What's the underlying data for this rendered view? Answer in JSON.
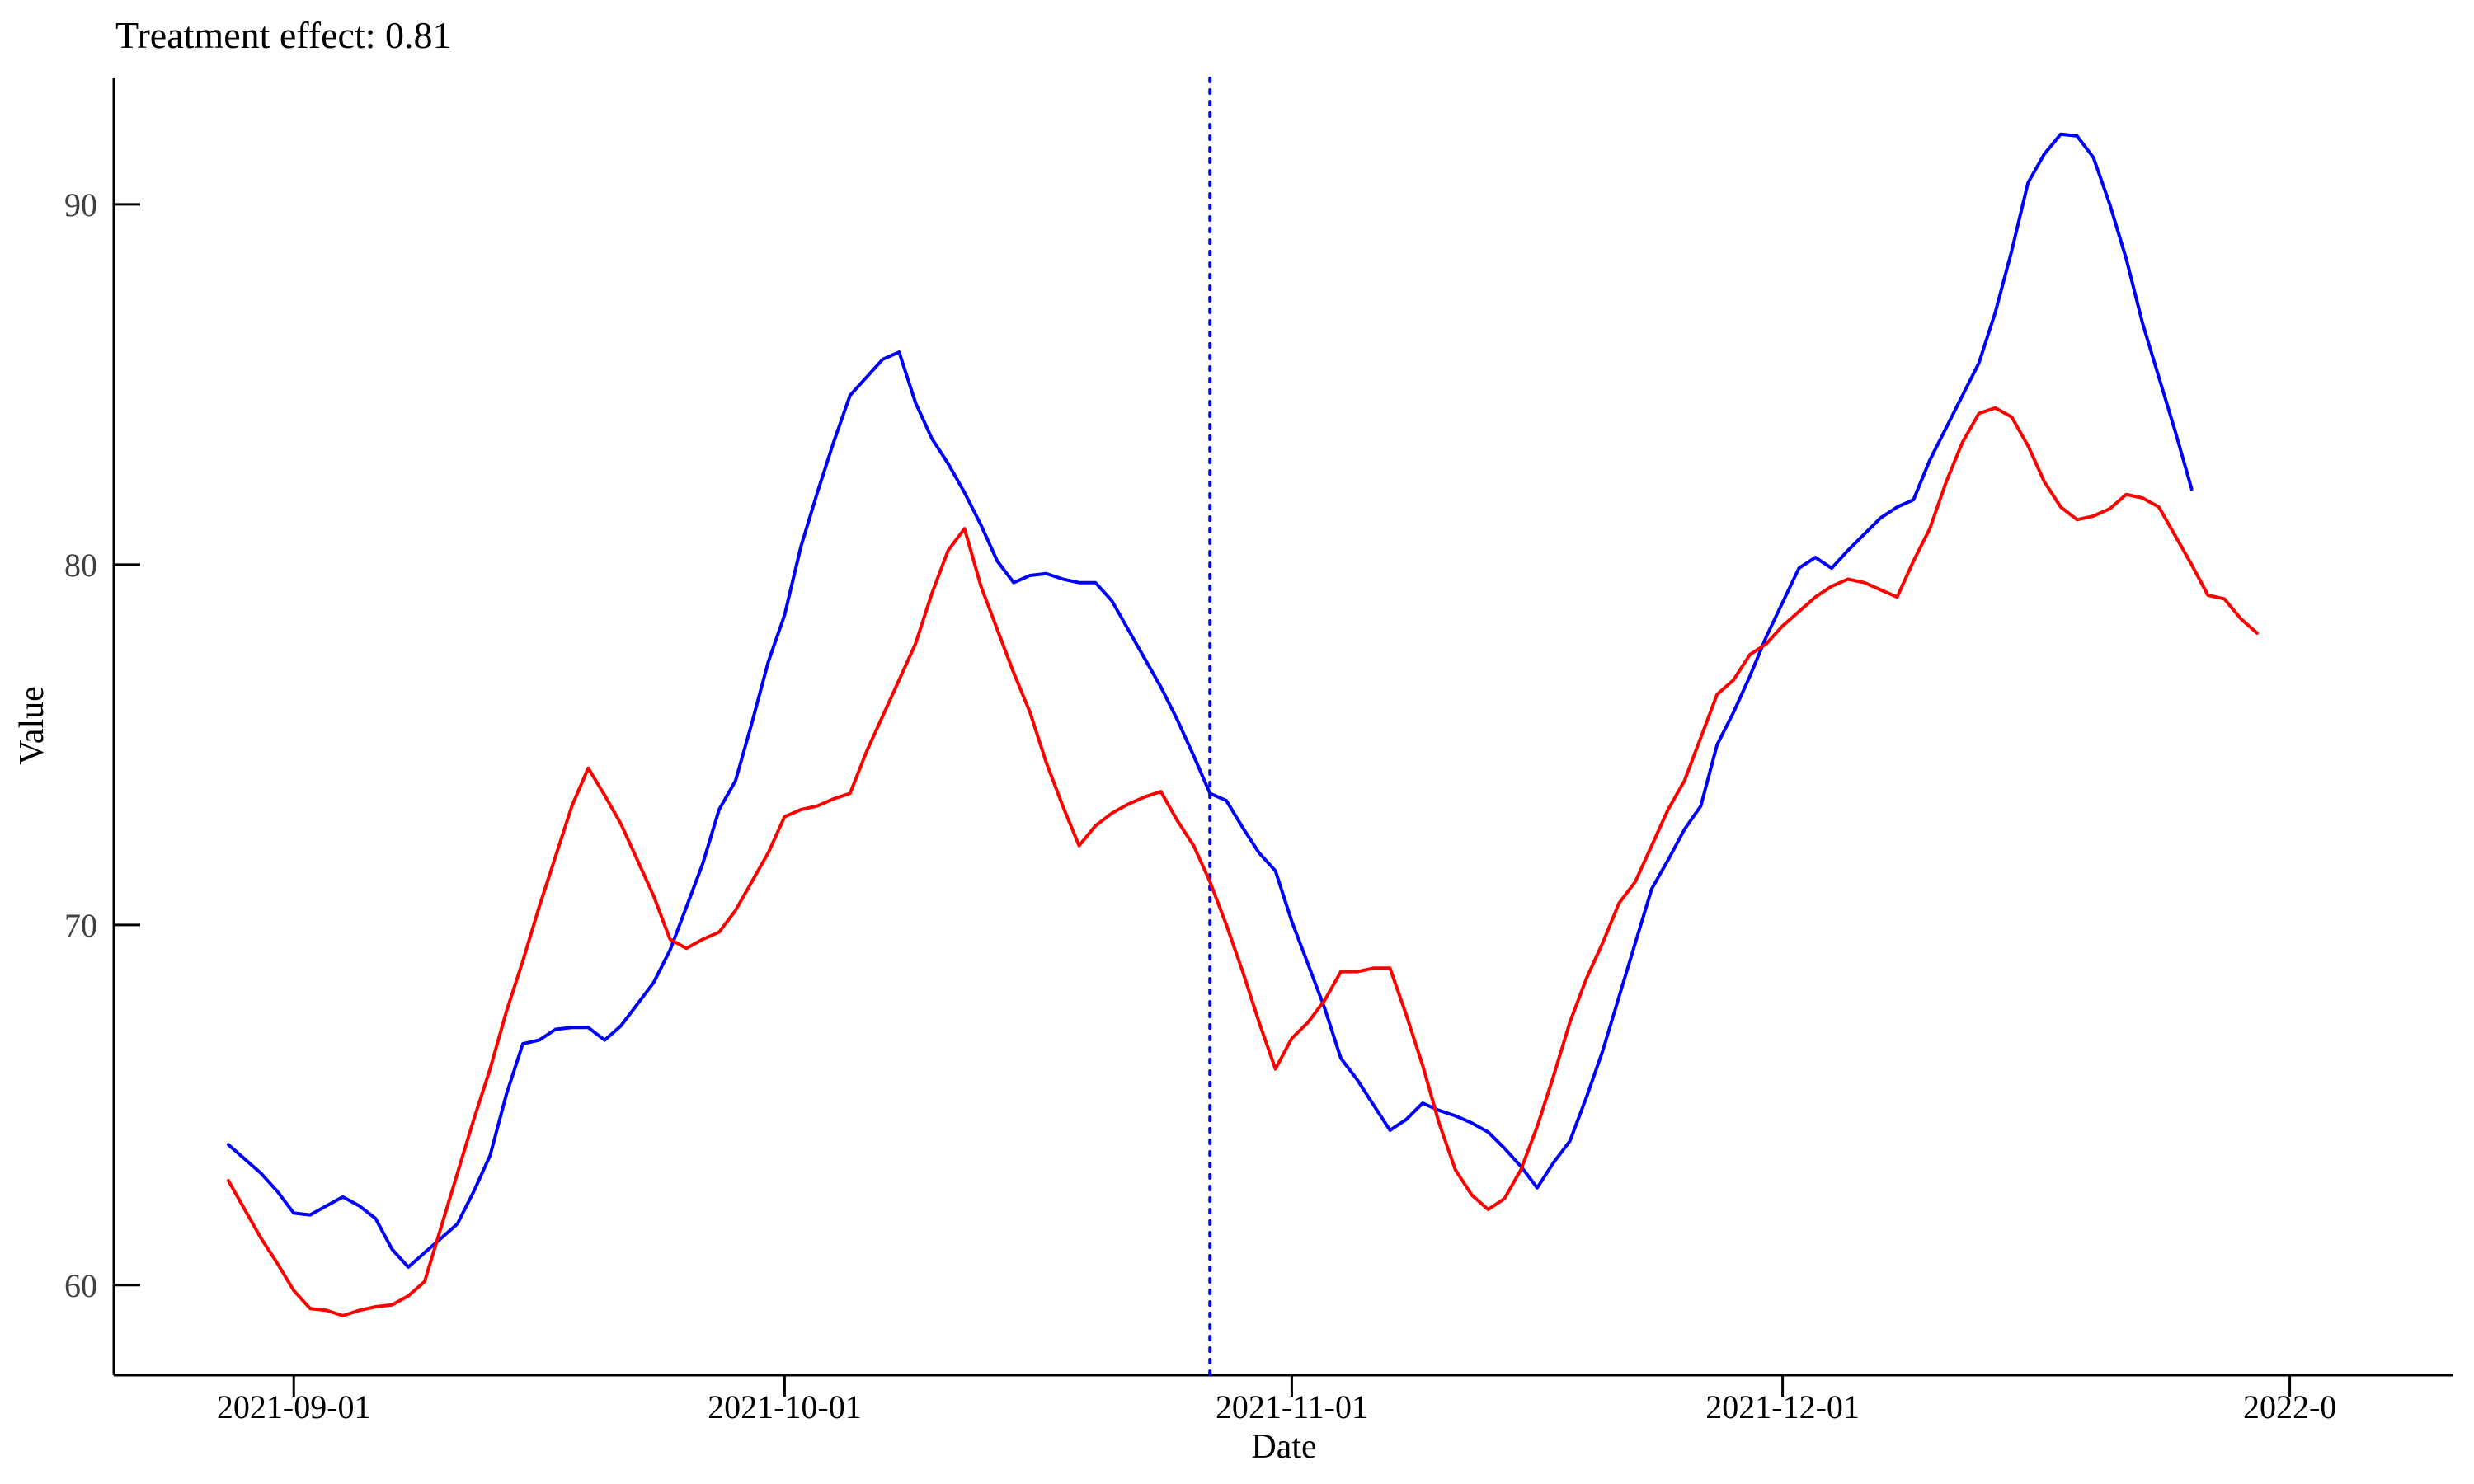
{
  "chart_data": {
    "type": "line",
    "title": "Treatment effect: 0.81",
    "xlabel": "Date",
    "ylabel": "Value",
    "xlim": [
      "2021-08-21",
      "2022-01-11"
    ],
    "ylim": [
      57.5,
      93.5
    ],
    "x_ticks": [
      "2021-09-01",
      "2021-10-01",
      "2021-11-01",
      "2021-12-01",
      "2022-01-01"
    ],
    "x_tick_labels": [
      "2021-09-01",
      "2021-10-01",
      "2021-11-01",
      "2021-12-01",
      "2022-0"
    ],
    "y_ticks": [
      60,
      70,
      80,
      90
    ],
    "y_tick_labels": [
      "60",
      "70",
      "80",
      "90"
    ],
    "grid": false,
    "legend": "none",
    "intervention_date": "2021-10-27",
    "intervention_color": "#0000ff",
    "series": [
      {
        "color": "#0000ff",
        "points": [
          [
            "2021-08-28",
            63.9
          ],
          [
            "2021-08-29",
            63.5
          ],
          [
            "2021-08-30",
            63.1
          ],
          [
            "2021-08-31",
            62.6
          ],
          [
            "2021-09-01",
            62.0
          ],
          [
            "2021-09-02",
            61.95
          ],
          [
            "2021-09-03",
            62.2
          ],
          [
            "2021-09-04",
            62.45
          ],
          [
            "2021-09-05",
            62.2
          ],
          [
            "2021-09-06",
            61.85
          ],
          [
            "2021-09-07",
            61.0
          ],
          [
            "2021-09-08",
            60.5
          ],
          [
            "2021-09-09",
            60.9
          ],
          [
            "2021-09-10",
            61.3
          ],
          [
            "2021-09-11",
            61.7
          ],
          [
            "2021-09-12",
            62.6
          ],
          [
            "2021-09-13",
            63.6
          ],
          [
            "2021-09-14",
            65.3
          ],
          [
            "2021-09-15",
            66.7
          ],
          [
            "2021-09-16",
            66.8
          ],
          [
            "2021-09-17",
            67.1
          ],
          [
            "2021-09-18",
            67.15
          ],
          [
            "2021-09-19",
            67.15
          ],
          [
            "2021-09-20",
            66.8
          ],
          [
            "2021-09-21",
            67.2
          ],
          [
            "2021-09-22",
            67.8
          ],
          [
            "2021-09-23",
            68.4
          ],
          [
            "2021-09-24",
            69.3
          ],
          [
            "2021-09-25",
            70.5
          ],
          [
            "2021-09-26",
            71.7
          ],
          [
            "2021-09-27",
            73.2
          ],
          [
            "2021-09-28",
            74.0
          ],
          [
            "2021-09-29",
            75.6
          ],
          [
            "2021-09-30",
            77.3
          ],
          [
            "2021-10-01",
            78.6
          ],
          [
            "2021-10-02",
            80.5
          ],
          [
            "2021-10-03",
            82.0
          ],
          [
            "2021-10-04",
            83.4
          ],
          [
            "2021-10-05",
            84.7
          ],
          [
            "2021-10-06",
            85.2
          ],
          [
            "2021-10-07",
            85.7
          ],
          [
            "2021-10-08",
            85.9
          ],
          [
            "2021-10-09",
            84.5
          ],
          [
            "2021-10-10",
            83.5
          ],
          [
            "2021-10-11",
            82.8
          ],
          [
            "2021-10-12",
            82.0
          ],
          [
            "2021-10-13",
            81.1
          ],
          [
            "2021-10-14",
            80.1
          ],
          [
            "2021-10-15",
            79.5
          ],
          [
            "2021-10-16",
            79.7
          ],
          [
            "2021-10-17",
            79.75
          ],
          [
            "2021-10-18",
            79.6
          ],
          [
            "2021-10-19",
            79.5
          ],
          [
            "2021-10-20",
            79.5
          ],
          [
            "2021-10-21",
            79.0
          ],
          [
            "2021-10-22",
            78.2
          ],
          [
            "2021-10-23",
            77.4
          ],
          [
            "2021-10-24",
            76.6
          ],
          [
            "2021-10-25",
            75.7
          ],
          [
            "2021-10-26",
            74.7
          ],
          [
            "2021-10-27",
            73.65
          ],
          [
            "2021-10-28",
            73.45
          ],
          [
            "2021-10-29",
            72.7
          ],
          [
            "2021-10-30",
            72.0
          ],
          [
            "2021-10-31",
            71.5
          ],
          [
            "2021-11-01",
            70.1
          ],
          [
            "2021-11-02",
            68.9
          ],
          [
            "2021-11-03",
            67.7
          ],
          [
            "2021-11-04",
            66.3
          ],
          [
            "2021-11-05",
            65.7
          ],
          [
            "2021-11-06",
            65.0
          ],
          [
            "2021-11-07",
            64.3
          ],
          [
            "2021-11-08",
            64.6
          ],
          [
            "2021-11-09",
            65.05
          ],
          [
            "2021-11-10",
            64.85
          ],
          [
            "2021-11-11",
            64.7
          ],
          [
            "2021-11-12",
            64.5
          ],
          [
            "2021-11-13",
            64.25
          ],
          [
            "2021-11-14",
            63.8
          ],
          [
            "2021-11-15",
            63.3
          ],
          [
            "2021-11-16",
            62.7
          ],
          [
            "2021-11-17",
            63.4
          ],
          [
            "2021-11-18",
            64.0
          ],
          [
            "2021-11-19",
            65.2
          ],
          [
            "2021-11-20",
            66.5
          ],
          [
            "2021-11-21",
            68.0
          ],
          [
            "2021-11-22",
            69.5
          ],
          [
            "2021-11-23",
            71.0
          ],
          [
            "2021-11-24",
            71.8
          ],
          [
            "2021-11-25",
            72.65
          ],
          [
            "2021-11-26",
            73.3
          ],
          [
            "2021-11-27",
            75.0
          ],
          [
            "2021-11-28",
            75.9
          ],
          [
            "2021-11-29",
            76.9
          ],
          [
            "2021-11-30",
            78.0
          ],
          [
            "2021-12-01",
            78.95
          ],
          [
            "2021-12-02",
            79.9
          ],
          [
            "2021-12-03",
            80.2
          ],
          [
            "2021-12-04",
            79.9
          ],
          [
            "2021-12-05",
            80.4
          ],
          [
            "2021-12-06",
            80.85
          ],
          [
            "2021-12-07",
            81.3
          ],
          [
            "2021-12-08",
            81.6
          ],
          [
            "2021-12-09",
            81.8
          ],
          [
            "2021-12-10",
            82.9
          ],
          [
            "2021-12-11",
            83.8
          ],
          [
            "2021-12-12",
            84.7
          ],
          [
            "2021-12-13",
            85.6
          ],
          [
            "2021-12-14",
            87.0
          ],
          [
            "2021-12-15",
            88.7
          ],
          [
            "2021-12-16",
            90.6
          ],
          [
            "2021-12-17",
            91.4
          ],
          [
            "2021-12-18",
            91.95
          ],
          [
            "2021-12-19",
            91.9
          ],
          [
            "2021-12-20",
            91.3
          ],
          [
            "2021-12-21",
            90.0
          ],
          [
            "2021-12-22",
            88.5
          ],
          [
            "2021-12-23",
            86.7
          ],
          [
            "2021-12-24",
            85.2
          ],
          [
            "2021-12-25",
            83.7
          ],
          [
            "2021-12-26",
            82.1
          ]
        ]
      },
      {
        "color": "#ff0000",
        "points": [
          [
            "2021-08-28",
            62.9
          ],
          [
            "2021-08-29",
            62.1
          ],
          [
            "2021-08-30",
            61.3
          ],
          [
            "2021-08-31",
            60.6
          ],
          [
            "2021-09-01",
            59.85
          ],
          [
            "2021-09-02",
            59.35
          ],
          [
            "2021-09-03",
            59.3
          ],
          [
            "2021-09-04",
            59.15
          ],
          [
            "2021-09-05",
            59.3
          ],
          [
            "2021-09-06",
            59.4
          ],
          [
            "2021-09-07",
            59.45
          ],
          [
            "2021-09-08",
            59.7
          ],
          [
            "2021-09-09",
            60.1
          ],
          [
            "2021-09-11",
            63.1
          ],
          [
            "2021-09-12",
            64.6
          ],
          [
            "2021-09-13",
            66.0
          ],
          [
            "2021-09-14",
            67.6
          ],
          [
            "2021-09-15",
            69.0
          ],
          [
            "2021-09-16",
            70.5
          ],
          [
            "2021-09-17",
            71.9
          ],
          [
            "2021-09-18",
            73.3
          ],
          [
            "2021-09-19",
            74.35
          ],
          [
            "2021-09-20",
            73.6
          ],
          [
            "2021-09-21",
            72.8
          ],
          [
            "2021-09-22",
            71.8
          ],
          [
            "2021-09-23",
            70.8
          ],
          [
            "2021-09-24",
            69.6
          ],
          [
            "2021-09-25",
            69.35
          ],
          [
            "2021-09-26",
            69.6
          ],
          [
            "2021-09-27",
            69.8
          ],
          [
            "2021-09-28",
            70.4
          ],
          [
            "2021-09-29",
            71.2
          ],
          [
            "2021-09-30",
            72.0
          ],
          [
            "2021-10-01",
            73.0
          ],
          [
            "2021-10-02",
            73.2
          ],
          [
            "2021-10-03",
            73.3
          ],
          [
            "2021-10-04",
            73.5
          ],
          [
            "2021-10-05",
            73.65
          ],
          [
            "2021-10-06",
            74.8
          ],
          [
            "2021-10-07",
            75.8
          ],
          [
            "2021-10-08",
            76.8
          ],
          [
            "2021-10-09",
            77.8
          ],
          [
            "2021-10-10",
            79.2
          ],
          [
            "2021-10-11",
            80.4
          ],
          [
            "2021-10-12",
            81.0
          ],
          [
            "2021-10-13",
            79.4
          ],
          [
            "2021-10-14",
            78.2
          ],
          [
            "2021-10-15",
            77.0
          ],
          [
            "2021-10-16",
            75.9
          ],
          [
            "2021-10-17",
            74.5
          ],
          [
            "2021-10-18",
            73.3
          ],
          [
            "2021-10-19",
            72.2
          ],
          [
            "2021-10-20",
            72.75
          ],
          [
            "2021-10-21",
            73.1
          ],
          [
            "2021-10-22",
            73.35
          ],
          [
            "2021-10-23",
            73.55
          ],
          [
            "2021-10-24",
            73.7
          ],
          [
            "2021-10-25",
            72.9
          ],
          [
            "2021-10-26",
            72.2
          ],
          [
            "2021-10-27",
            71.2
          ],
          [
            "2021-10-28",
            70.0
          ],
          [
            "2021-10-29",
            68.7
          ],
          [
            "2021-10-30",
            67.3
          ],
          [
            "2021-10-31",
            66.0
          ],
          [
            "2021-11-01",
            66.85
          ],
          [
            "2021-11-02",
            67.3
          ],
          [
            "2021-11-03",
            67.9
          ],
          [
            "2021-11-04",
            68.7
          ],
          [
            "2021-11-05",
            68.7
          ],
          [
            "2021-11-06",
            68.8
          ],
          [
            "2021-11-07",
            68.8
          ],
          [
            "2021-11-08",
            67.5
          ],
          [
            "2021-11-09",
            66.1
          ],
          [
            "2021-11-10",
            64.5
          ],
          [
            "2021-11-11",
            63.2
          ],
          [
            "2021-11-12",
            62.5
          ],
          [
            "2021-11-13",
            62.1
          ],
          [
            "2021-11-14",
            62.4
          ],
          [
            "2021-11-15",
            63.2
          ],
          [
            "2021-11-16",
            64.4
          ],
          [
            "2021-11-17",
            65.8
          ],
          [
            "2021-11-18",
            67.3
          ],
          [
            "2021-11-19",
            68.5
          ],
          [
            "2021-11-20",
            69.5
          ],
          [
            "2021-11-21",
            70.6
          ],
          [
            "2021-11-22",
            71.2
          ],
          [
            "2021-11-23",
            72.2
          ],
          [
            "2021-11-24",
            73.2
          ],
          [
            "2021-11-25",
            74.0
          ],
          [
            "2021-11-26",
            75.2
          ],
          [
            "2021-11-27",
            76.4
          ],
          [
            "2021-11-28",
            76.8
          ],
          [
            "2021-11-29",
            77.5
          ],
          [
            "2021-11-30",
            77.8
          ],
          [
            "2021-12-01",
            78.3
          ],
          [
            "2021-12-02",
            78.7
          ],
          [
            "2021-12-03",
            79.1
          ],
          [
            "2021-12-04",
            79.4
          ],
          [
            "2021-12-05",
            79.6
          ],
          [
            "2021-12-06",
            79.5
          ],
          [
            "2021-12-07",
            79.3
          ],
          [
            "2021-12-08",
            79.1
          ],
          [
            "2021-12-09",
            80.1
          ],
          [
            "2021-12-10",
            81.0
          ],
          [
            "2021-12-11",
            82.3
          ],
          [
            "2021-12-12",
            83.4
          ],
          [
            "2021-12-13",
            84.2
          ],
          [
            "2021-12-14",
            84.35
          ],
          [
            "2021-12-15",
            84.1
          ],
          [
            "2021-12-16",
            83.3
          ],
          [
            "2021-12-17",
            82.3
          ],
          [
            "2021-12-18",
            81.6
          ],
          [
            "2021-12-19",
            81.25
          ],
          [
            "2021-12-20",
            81.35
          ],
          [
            "2021-12-21",
            81.55
          ],
          [
            "2021-12-22",
            81.95
          ],
          [
            "2021-12-23",
            81.85
          ],
          [
            "2021-12-24",
            81.6
          ],
          [
            "2021-12-25",
            80.8
          ],
          [
            "2021-12-26",
            80.0
          ],
          [
            "2021-12-27",
            79.15
          ],
          [
            "2021-12-28",
            79.05
          ],
          [
            "2021-12-29",
            78.5
          ],
          [
            "2021-12-30",
            78.1
          ]
        ]
      }
    ]
  }
}
